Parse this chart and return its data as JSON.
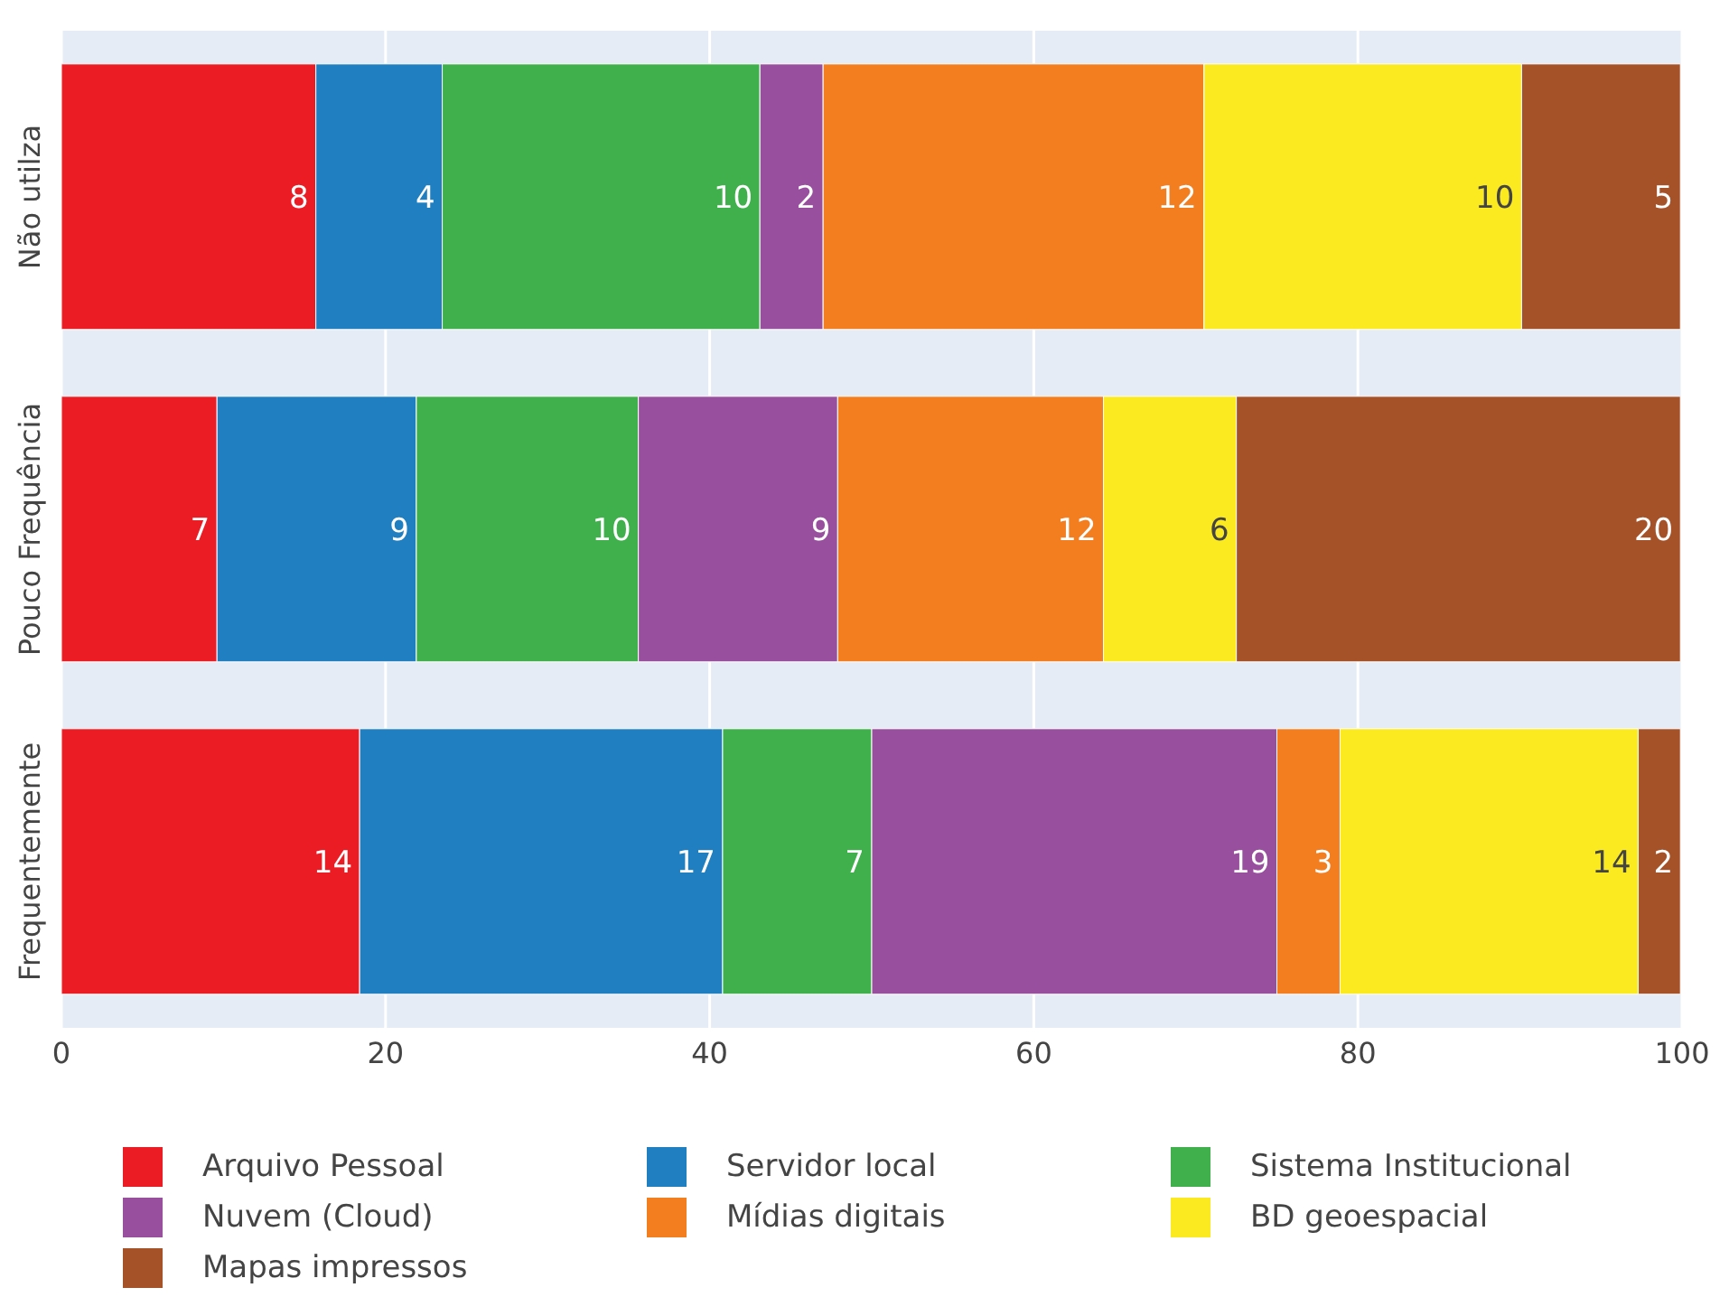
{
  "chart_data": {
    "type": "bar",
    "orientation": "horizontal",
    "stacked": true,
    "categories": [
      "Não utilza",
      "Pouco Frequência",
      "Frequentemente"
    ],
    "series": [
      {
        "name": "Arquivo Pessoal",
        "color": "#ec1c24",
        "values": [
          15.7,
          9.6,
          18.4
        ]
      },
      {
        "name": "Servidor local",
        "color": "#1f7fc0",
        "values": [
          7.8,
          12.3,
          22.4
        ]
      },
      {
        "name": "Sistema Institucional",
        "color": "#3fb04b",
        "values": [
          19.6,
          13.7,
          9.2
        ]
      },
      {
        "name": "Nuvem (Cloud)",
        "color": "#984f9d",
        "values": [
          3.9,
          12.3,
          25.0
        ]
      },
      {
        "name": "Mídias digitais",
        "color": "#f27e20",
        "values": [
          23.5,
          16.4,
          3.9
        ]
      },
      {
        "name": "BD geoespacial",
        "color": "#fbea20",
        "values": [
          19.6,
          8.2,
          18.4
        ]
      },
      {
        "name": "Mapas impressos",
        "color": "#a65228",
        "values": [
          9.8,
          27.4,
          2.6
        ]
      }
    ],
    "annotations": [
      {
        "text": "8",
        "x": 15.7,
        "y": "Não utilza"
      },
      {
        "text": "4",
        "x": 23.5,
        "y": "Não utilza"
      },
      {
        "text": "10",
        "x": 43.1,
        "y": "Não utilza"
      },
      {
        "text": "2",
        "x": 47.0,
        "y": "Não utilza"
      },
      {
        "text": "12",
        "x": 70.5,
        "y": "Não utilza"
      },
      {
        "text": "10",
        "x": 90.1,
        "y": "Não utilza"
      },
      {
        "text": "5",
        "x": 99.9,
        "y": "Não utilza"
      },
      {
        "text": "7",
        "x": 9.6,
        "y": "Pouco Frequência"
      },
      {
        "text": "9",
        "x": 21.9,
        "y": "Pouco Frequência"
      },
      {
        "text": "10",
        "x": 35.6,
        "y": "Pouco Frequência"
      },
      {
        "text": "9",
        "x": 47.9,
        "y": "Pouco Frequência"
      },
      {
        "text": "12",
        "x": 64.3,
        "y": "Pouco Frequência"
      },
      {
        "text": "6",
        "x": 72.5,
        "y": "Pouco Frequência"
      },
      {
        "text": "20",
        "x": 99.9,
        "y": "Pouco Frequência"
      },
      {
        "text": "14",
        "x": 18.4,
        "y": "Frequentemente"
      },
      {
        "text": "17",
        "x": 40.8,
        "y": "Frequentemente"
      },
      {
        "text": "7",
        "x": 50.0,
        "y": "Frequentemente"
      },
      {
        "text": "19",
        "x": 75.0,
        "y": "Frequentemente"
      },
      {
        "text": "3",
        "x": 78.9,
        "y": "Frequentemente"
      },
      {
        "text": "14",
        "x": 97.3,
        "y": "Frequentemente"
      },
      {
        "text": "2",
        "x": 99.9,
        "y": "Frequentemente"
      }
    ],
    "xlim": [
      0,
      100
    ],
    "xticks": [
      0,
      20,
      40,
      60,
      80,
      100
    ],
    "grid": "x",
    "legend": "bottom"
  }
}
